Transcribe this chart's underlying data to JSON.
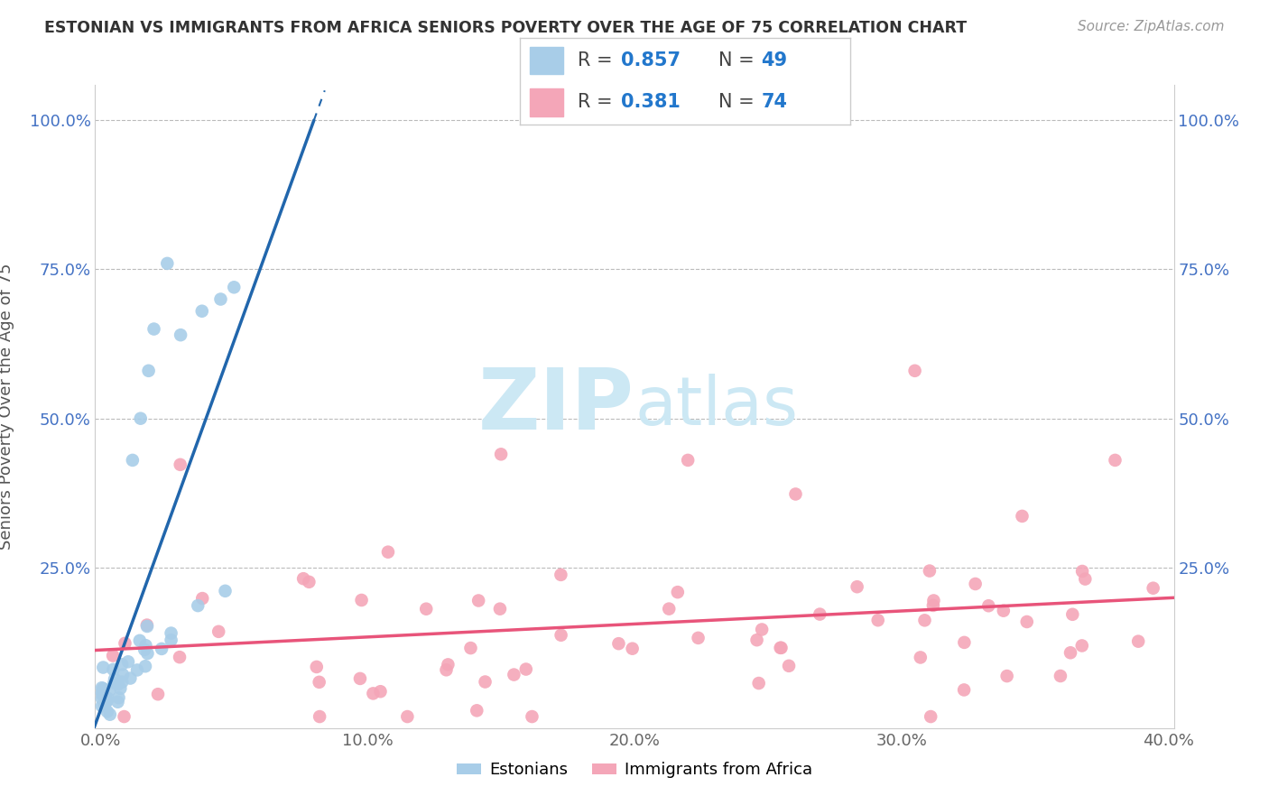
{
  "title": "ESTONIAN VS IMMIGRANTS FROM AFRICA SENIORS POVERTY OVER THE AGE OF 75 CORRELATION CHART",
  "source": "Source: ZipAtlas.com",
  "ylabel": "Seniors Poverty Over the Age of 75",
  "xlim": [
    -0.002,
    0.402
  ],
  "ylim": [
    -0.02,
    1.06
  ],
  "r_estonian": 0.857,
  "n_estonian": 49,
  "r_africa": 0.381,
  "n_africa": 74,
  "estonian_color": "#a8cde8",
  "africa_color": "#f4a6b8",
  "estonian_line_color": "#2166ac",
  "africa_line_color": "#e8547a",
  "legend_label_1": "Estonians",
  "legend_label_2": "Immigrants from Africa",
  "background_color": "#ffffff",
  "watermark_color": "#cce8f4",
  "title_color": "#333333",
  "axis_label_color": "#555555",
  "tick_color": "#4472c4",
  "grid_color": "#bbbbbb"
}
